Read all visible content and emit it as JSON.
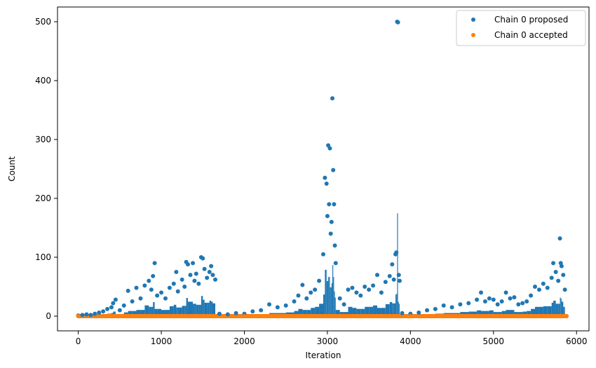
{
  "chart_data": {
    "type": "scatter",
    "title": "",
    "xlabel": "Iteration",
    "ylabel": "Count",
    "xlim": [
      -250,
      6150
    ],
    "ylim": [
      -25,
      525
    ],
    "xticks": [
      0,
      1000,
      2000,
      3000,
      4000,
      5000,
      6000
    ],
    "xtick_labels": [
      "0",
      "1000",
      "2000",
      "3000",
      "4000",
      "5000",
      "6000"
    ],
    "yticks": [
      0,
      100,
      200,
      300,
      400,
      500
    ],
    "ytick_labels": [
      "0",
      "100",
      "200",
      "300",
      "400",
      "500"
    ],
    "grid": false,
    "legend_position": "top-right",
    "series": [
      {
        "name": "Chain 0 proposed",
        "color": "#1f77b4",
        "marker": "circle",
        "points": [
          [
            0,
            1
          ],
          [
            50,
            2
          ],
          [
            100,
            3
          ],
          [
            150,
            2
          ],
          [
            200,
            4
          ],
          [
            250,
            6
          ],
          [
            300,
            8
          ],
          [
            350,
            12
          ],
          [
            400,
            15
          ],
          [
            420,
            22
          ],
          [
            450,
            28
          ],
          [
            500,
            10
          ],
          [
            550,
            18
          ],
          [
            600,
            43
          ],
          [
            650,
            25
          ],
          [
            700,
            48
          ],
          [
            750,
            30
          ],
          [
            800,
            52
          ],
          [
            850,
            60
          ],
          [
            880,
            45
          ],
          [
            900,
            68
          ],
          [
            920,
            90
          ],
          [
            950,
            35
          ],
          [
            1000,
            40
          ],
          [
            1050,
            30
          ],
          [
            1100,
            48
          ],
          [
            1150,
            55
          ],
          [
            1180,
            75
          ],
          [
            1200,
            42
          ],
          [
            1250,
            62
          ],
          [
            1280,
            50
          ],
          [
            1300,
            92
          ],
          [
            1320,
            88
          ],
          [
            1350,
            70
          ],
          [
            1380,
            90
          ],
          [
            1400,
            60
          ],
          [
            1420,
            72
          ],
          [
            1450,
            55
          ],
          [
            1480,
            100
          ],
          [
            1500,
            98
          ],
          [
            1520,
            80
          ],
          [
            1550,
            65
          ],
          [
            1580,
            75
          ],
          [
            1600,
            85
          ],
          [
            1620,
            70
          ],
          [
            1650,
            62
          ],
          [
            1700,
            4
          ],
          [
            1800,
            3
          ],
          [
            1900,
            5
          ],
          [
            2000,
            4
          ],
          [
            2100,
            8
          ],
          [
            2200,
            10
          ],
          [
            2300,
            20
          ],
          [
            2400,
            15
          ],
          [
            2500,
            18
          ],
          [
            2600,
            25
          ],
          [
            2650,
            35
          ],
          [
            2700,
            53
          ],
          [
            2750,
            30
          ],
          [
            2800,
            40
          ],
          [
            2850,
            45
          ],
          [
            2900,
            60
          ],
          [
            2950,
            105
          ],
          [
            2970,
            235
          ],
          [
            2990,
            225
          ],
          [
            3000,
            170
          ],
          [
            3010,
            290
          ],
          [
            3020,
            190
          ],
          [
            3030,
            285
          ],
          [
            3040,
            140
          ],
          [
            3050,
            160
          ],
          [
            3060,
            370
          ],
          [
            3070,
            248
          ],
          [
            3080,
            190
          ],
          [
            3090,
            120
          ],
          [
            3100,
            90
          ],
          [
            3150,
            30
          ],
          [
            3200,
            20
          ],
          [
            3250,
            45
          ],
          [
            3300,
            48
          ],
          [
            3350,
            40
          ],
          [
            3400,
            35
          ],
          [
            3450,
            50
          ],
          [
            3500,
            45
          ],
          [
            3550,
            52
          ],
          [
            3600,
            70
          ],
          [
            3650,
            40
          ],
          [
            3700,
            58
          ],
          [
            3750,
            68
          ],
          [
            3780,
            88
          ],
          [
            3800,
            62
          ],
          [
            3820,
            105
          ],
          [
            3830,
            108
          ],
          [
            3840,
            500
          ],
          [
            3850,
            499
          ],
          [
            3860,
            70
          ],
          [
            3870,
            60
          ],
          [
            3900,
            5
          ],
          [
            4000,
            4
          ],
          [
            4100,
            6
          ],
          [
            4200,
            10
          ],
          [
            4300,
            12
          ],
          [
            4400,
            18
          ],
          [
            4500,
            15
          ],
          [
            4600,
            20
          ],
          [
            4700,
            22
          ],
          [
            4800,
            28
          ],
          [
            4850,
            40
          ],
          [
            4900,
            25
          ],
          [
            4950,
            30
          ],
          [
            5000,
            28
          ],
          [
            5050,
            20
          ],
          [
            5100,
            25
          ],
          [
            5150,
            40
          ],
          [
            5200,
            30
          ],
          [
            5250,
            32
          ],
          [
            5300,
            20
          ],
          [
            5350,
            22
          ],
          [
            5400,
            25
          ],
          [
            5450,
            35
          ],
          [
            5500,
            50
          ],
          [
            5550,
            45
          ],
          [
            5600,
            55
          ],
          [
            5650,
            48
          ],
          [
            5700,
            65
          ],
          [
            5720,
            90
          ],
          [
            5750,
            75
          ],
          [
            5780,
            60
          ],
          [
            5800,
            132
          ],
          [
            5810,
            90
          ],
          [
            5820,
            85
          ],
          [
            5840,
            70
          ],
          [
            5860,
            45
          ]
        ]
      },
      {
        "name": "Chain 0 accepted",
        "color": "#ff7f0e",
        "marker": "circle",
        "points": [
          [
            0,
            0
          ],
          [
            500,
            0
          ],
          [
            1000,
            0
          ],
          [
            1500,
            0
          ],
          [
            2000,
            0
          ],
          [
            2500,
            0
          ],
          [
            3000,
            0
          ],
          [
            3500,
            0
          ],
          [
            4000,
            0
          ],
          [
            4500,
            0
          ],
          [
            5000,
            0
          ],
          [
            5500,
            0
          ],
          [
            5880,
            0
          ]
        ]
      }
    ]
  }
}
